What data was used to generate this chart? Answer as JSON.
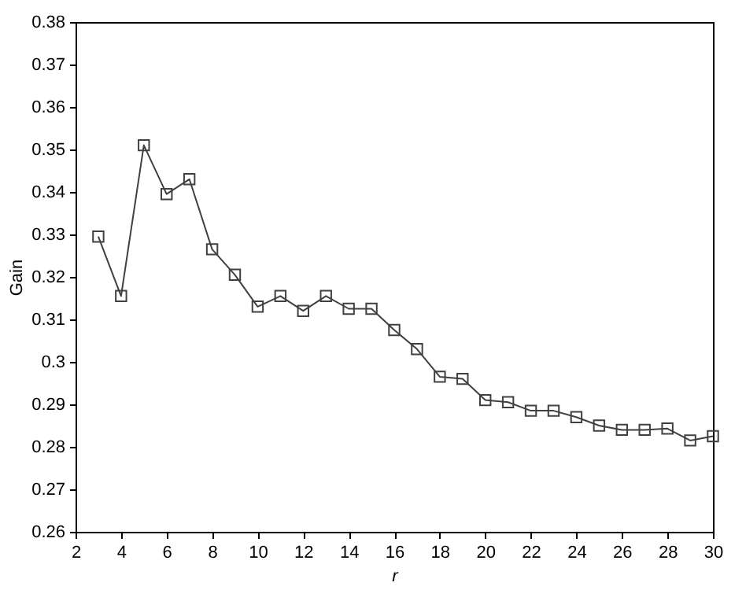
{
  "chart_data": {
    "type": "line",
    "xlabel": "r",
    "ylabel": "Gain",
    "x": [
      3,
      4,
      5,
      6,
      7,
      8,
      9,
      10,
      11,
      12,
      13,
      14,
      15,
      16,
      17,
      18,
      19,
      20,
      21,
      22,
      23,
      24,
      25,
      26,
      27,
      28,
      29,
      30
    ],
    "series": [
      {
        "color": "#404040",
        "values": [
          0.3295,
          0.3155,
          0.351,
          0.3395,
          0.343,
          0.3265,
          0.3205,
          0.313,
          0.3155,
          0.312,
          0.3155,
          0.3125,
          0.3125,
          0.3075,
          0.303,
          0.2965,
          0.296,
          0.291,
          0.2905,
          0.2885,
          0.2885,
          0.287,
          0.285,
          0.284,
          0.284,
          0.2843,
          0.2815,
          0.2825
        ]
      }
    ],
    "xlim": [
      2,
      30
    ],
    "xticks": [
      2,
      4,
      6,
      8,
      10,
      12,
      14,
      16,
      18,
      20,
      22,
      24,
      26,
      28,
      30
    ],
    "ylim": [
      0.26,
      0.38
    ],
    "yticks": [
      0.26,
      0.27,
      0.28,
      0.29,
      0.3,
      0.31,
      0.32,
      0.33,
      0.34,
      0.35,
      0.36,
      0.37,
      0.38
    ],
    "marker": "square",
    "line_style": "solid",
    "grid": false
  }
}
